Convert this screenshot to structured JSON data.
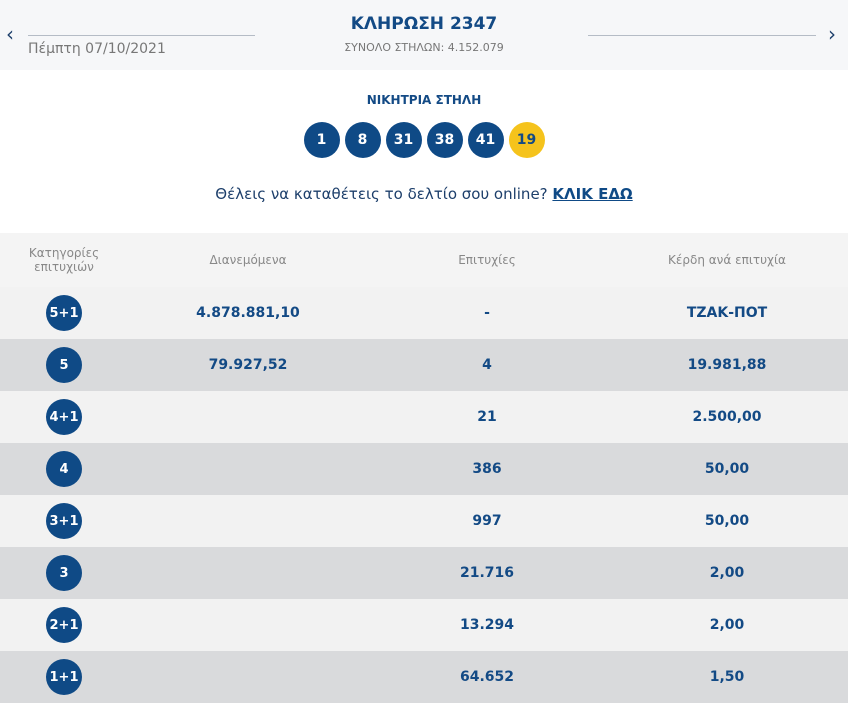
{
  "header": {
    "title": "ΚΛΗΡΩΣΗ 2347",
    "date": "Πέμπτη 07/10/2021",
    "total_columns": "ΣΥΝΟΛΟ ΣΤΗΛΩΝ: 4.152.079",
    "prev_icon": "chevron-left",
    "next_icon": "chevron-right",
    "prev": "‹",
    "next": "›"
  },
  "winning": {
    "label": "ΝΙΚΗΤΡΙΑ ΣΤΗΛΗ",
    "numbers": [
      "1",
      "8",
      "31",
      "38",
      "41"
    ],
    "joker": "19",
    "joker_color": "#f5c31c",
    "number_color": "#0f4a86"
  },
  "cta": {
    "text": "Θέλεις να καταθέτεις το δελτίο σου online?",
    "link": "ΚΛΙΚ ΕΔΩ"
  },
  "table": {
    "headers": [
      "Κατηγορίες επιτυχιών",
      "Διανεμόμενα",
      "Επιτυχίες",
      "Κέρδη ανά επιτυχία"
    ],
    "rows": [
      [
        "5+1",
        "4.878.881,10",
        "-",
        "ΤΖΑΚ-ΠΟΤ"
      ],
      [
        "5",
        "79.927,52",
        "4",
        "19.981,88"
      ],
      [
        "4+1",
        "",
        "21",
        "2.500,00"
      ],
      [
        "4",
        "",
        "386",
        "50,00"
      ],
      [
        "3+1",
        "",
        "997",
        "50,00"
      ],
      [
        "3",
        "",
        "21.716",
        "2,00"
      ],
      [
        "2+1",
        "",
        "13.294",
        "2,00"
      ],
      [
        "1+1",
        "",
        "64.652",
        "1,50"
      ]
    ]
  }
}
